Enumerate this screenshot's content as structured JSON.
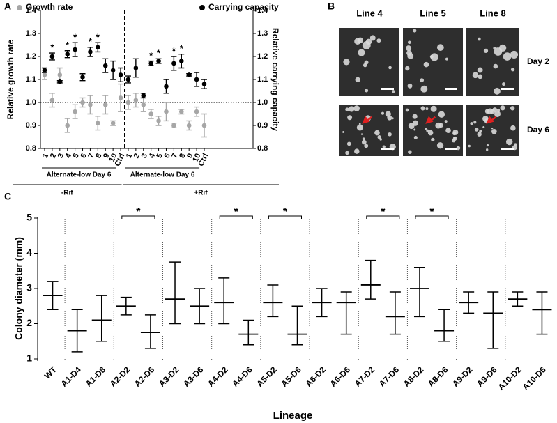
{
  "panel_labels": [
    "A",
    "B",
    "C"
  ],
  "chart_data": [
    {
      "type": "errorscatter",
      "categories": [
        "1",
        "2",
        "3",
        "4",
        "5",
        "6",
        "7",
        "8",
        "9",
        "10",
        "Ctrl",
        "1",
        "2",
        "3",
        "4",
        "5",
        "6",
        "7",
        "8",
        "9",
        "10",
        "Ctrl"
      ],
      "ylabel": "Relative growth rate",
      "y2label": "Relative carrying capacity",
      "ylim": [
        0.8,
        1.4
      ],
      "yticks": [
        0.8,
        0.9,
        {
          "value": 1.0,
          "label": "1.0"
        },
        1.1,
        1.2,
        1.3,
        1.4
      ],
      "y2lim": [
        0.8,
        1.4
      ],
      "y2ticks": [
        0.8,
        0.9,
        {
          "value": 1.0,
          "label": "1.0"
        },
        1.1,
        1.2,
        1.3,
        1.4
      ],
      "hline": 1.0,
      "groups": [
        "Alternate-low Day 6",
        "Alternate-low Day 6"
      ],
      "treatments": [
        "-Rif",
        "+Rif"
      ],
      "series": [
        {
          "name": "Growth rate",
          "color": "#a6a6a6",
          "axis": "y",
          "values": [
            1.12,
            1.01,
            1.12,
            0.9,
            0.96,
            1.0,
            0.99,
            0.91,
            0.99,
            0.91,
            1.02,
            1.0,
            1.01,
            0.99,
            0.95,
            0.92,
            0.96,
            0.9,
            0.96,
            0.9,
            0.96,
            0.9
          ],
          "errors": [
            0.02,
            0.03,
            0.03,
            0.03,
            0.03,
            0.02,
            0.04,
            0.03,
            0.04,
            0.01,
            0.06,
            0.03,
            0.03,
            0.03,
            0.02,
            0.02,
            0.04,
            0.01,
            0.01,
            0.02,
            0.02,
            0.05
          ]
        },
        {
          "name": "Carrying capacity",
          "color": "#000000",
          "axis": "y2",
          "values": [
            1.14,
            1.2,
            1.09,
            1.21,
            1.23,
            1.11,
            1.22,
            1.24,
            1.16,
            1.14,
            1.12,
            1.1,
            1.15,
            1.03,
            1.17,
            1.18,
            1.07,
            1.17,
            1.18,
            1.12,
            1.1,
            1.08
          ],
          "errors": [
            0.01,
            0.015,
            0.005,
            0.015,
            0.03,
            0.015,
            0.02,
            0.02,
            0.03,
            0.04,
            0.03,
            0.015,
            0.04,
            0.01,
            0.01,
            0.01,
            0.03,
            0.03,
            0.03,
            0.005,
            0.03,
            0.02
          ]
        }
      ],
      "annotations": [
        {
          "index": 1,
          "text": "*"
        },
        {
          "index": 3,
          "text": "*"
        },
        {
          "index": 4,
          "text": "*"
        },
        {
          "index": 6,
          "text": "*"
        },
        {
          "index": 7,
          "text": "*"
        },
        {
          "index": 14,
          "text": "*"
        },
        {
          "index": 15,
          "text": "*"
        },
        {
          "index": 17,
          "text": "*"
        },
        {
          "index": 18,
          "text": "*"
        }
      ]
    },
    {
      "type": "meanbar",
      "xlabel": "Lineage",
      "ylabel": "Colony diameter (mm)",
      "categories": [
        "WT",
        "A1-D4",
        "A1-D8",
        "A2-D2",
        "A2-D6",
        "A3-D2",
        "A3-D6",
        "A4-D2",
        "A4-D6",
        "A5-D2",
        "A5-D6",
        "A6-D2",
        "A6-D6",
        "A7-D2",
        "A7-D6",
        "A8-D2",
        "A8-D6",
        "A9-D2",
        "A9-D6",
        "A10-D2",
        "A10-D6"
      ],
      "ylim": [
        1,
        5
      ],
      "yticks": [
        1,
        2,
        3,
        4,
        5
      ],
      "values": [
        2.8,
        1.8,
        2.1,
        2.5,
        1.75,
        2.7,
        2.5,
        2.6,
        1.7,
        2.6,
        1.7,
        2.6,
        2.6,
        3.1,
        2.2,
        3.0,
        1.8,
        2.6,
        2.3,
        2.7,
        2.4
      ],
      "upper": [
        3.2,
        2.4,
        2.8,
        2.75,
        2.25,
        3.75,
        3.0,
        3.3,
        2.1,
        3.1,
        2.5,
        3.0,
        2.9,
        3.8,
        2.9,
        3.6,
        2.4,
        2.9,
        2.9,
        2.9,
        2.9
      ],
      "lower": [
        2.4,
        1.2,
        1.5,
        2.25,
        1.3,
        2.0,
        2.0,
        2.0,
        1.4,
        2.2,
        1.4,
        2.2,
        1.7,
        2.7,
        1.7,
        2.2,
        1.5,
        2.3,
        1.3,
        2.5,
        1.7
      ],
      "comparisons": [
        {
          "pair": [
            3,
            4
          ],
          "label": "*"
        },
        {
          "pair": [
            7,
            8
          ],
          "label": "*"
        },
        {
          "pair": [
            9,
            10
          ],
          "label": "*"
        },
        {
          "pair": [
            13,
            14
          ],
          "label": "*"
        },
        {
          "pair": [
            15,
            16
          ],
          "label": "*"
        }
      ]
    }
  ],
  "panel_b": {
    "columns": [
      "Line 4",
      "Line 5",
      "Line 8"
    ],
    "rows": [
      "Day 2",
      "Day 6"
    ]
  }
}
